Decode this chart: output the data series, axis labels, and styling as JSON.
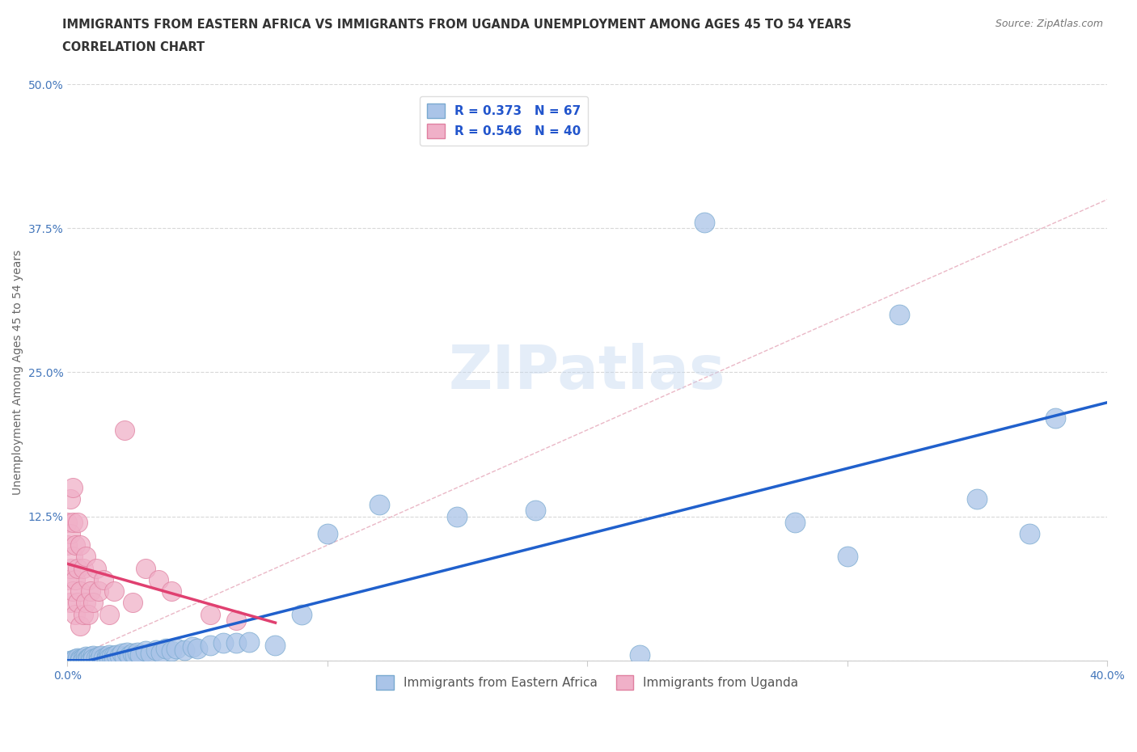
{
  "title_line1": "IMMIGRANTS FROM EASTERN AFRICA VS IMMIGRANTS FROM UGANDA UNEMPLOYMENT AMONG AGES 45 TO 54 YEARS",
  "title_line2": "CORRELATION CHART",
  "source": "Source: ZipAtlas.com",
  "ylabel": "Unemployment Among Ages 45 to 54 years",
  "xlim": [
    0.0,
    0.4
  ],
  "ylim": [
    0.0,
    0.5
  ],
  "xtick_positions": [
    0.0,
    0.1,
    0.2,
    0.3,
    0.4
  ],
  "xticklabels": [
    "0.0%",
    "",
    "",
    "",
    "40.0%"
  ],
  "ytick_positions": [
    0.0,
    0.125,
    0.25,
    0.375,
    0.5
  ],
  "yticklabels": [
    "",
    "12.5%",
    "25.0%",
    "37.5%",
    "50.0%"
  ],
  "series1_label": "Immigrants from Eastern Africa",
  "series1_color": "#aac4e8",
  "series1_edge_color": "#7aaad0",
  "series1_line_color": "#2060cc",
  "series1_R": 0.373,
  "series1_N": 67,
  "series2_label": "Immigrants from Uganda",
  "series2_color": "#f0b0c8",
  "series2_edge_color": "#e080a0",
  "series2_line_color": "#e04070",
  "series2_R": 0.546,
  "series2_N": 40,
  "watermark": "ZIPatlas",
  "background_color": "#ffffff",
  "grid_color": "#d8d8d8",
  "diagonal_line_color": "#e8b0c0",
  "eastern_africa_x": [
    0.001,
    0.002,
    0.003,
    0.004,
    0.004,
    0.005,
    0.005,
    0.006,
    0.006,
    0.007,
    0.007,
    0.008,
    0.008,
    0.009,
    0.009,
    0.01,
    0.01,
    0.011,
    0.012,
    0.012,
    0.013,
    0.014,
    0.015,
    0.015,
    0.016,
    0.016,
    0.017,
    0.018,
    0.018,
    0.019,
    0.02,
    0.021,
    0.022,
    0.023,
    0.024,
    0.025,
    0.026,
    0.027,
    0.028,
    0.03,
    0.032,
    0.034,
    0.036,
    0.038,
    0.04,
    0.042,
    0.045,
    0.048,
    0.05,
    0.055,
    0.06,
    0.065,
    0.07,
    0.08,
    0.09,
    0.1,
    0.12,
    0.15,
    0.18,
    0.22,
    0.245,
    0.28,
    0.3,
    0.32,
    0.35,
    0.37,
    0.38
  ],
  "eastern_africa_y": [
    0.0,
    0.0,
    0.001,
    0.0,
    0.002,
    0.001,
    0.0,
    0.002,
    0.0,
    0.003,
    0.0,
    0.002,
    0.001,
    0.003,
    0.0,
    0.004,
    0.001,
    0.002,
    0.003,
    0.0,
    0.004,
    0.002,
    0.003,
    0.001,
    0.005,
    0.002,
    0.003,
    0.004,
    0.001,
    0.005,
    0.004,
    0.006,
    0.003,
    0.007,
    0.004,
    0.006,
    0.005,
    0.007,
    0.005,
    0.008,
    0.006,
    0.009,
    0.007,
    0.01,
    0.008,
    0.01,
    0.009,
    0.012,
    0.01,
    0.013,
    0.015,
    0.015,
    0.016,
    0.013,
    0.04,
    0.11,
    0.135,
    0.125,
    0.13,
    0.005,
    0.38,
    0.12,
    0.09,
    0.3,
    0.14,
    0.11,
    0.21
  ],
  "uganda_x": [
    0.0,
    0.0,
    0.0,
    0.001,
    0.001,
    0.001,
    0.001,
    0.002,
    0.002,
    0.002,
    0.002,
    0.003,
    0.003,
    0.003,
    0.004,
    0.004,
    0.004,
    0.005,
    0.005,
    0.005,
    0.006,
    0.006,
    0.007,
    0.007,
    0.008,
    0.008,
    0.009,
    0.01,
    0.011,
    0.012,
    0.014,
    0.016,
    0.018,
    0.022,
    0.025,
    0.03,
    0.035,
    0.04,
    0.055,
    0.065
  ],
  "uganda_y": [
    0.07,
    0.1,
    0.12,
    0.05,
    0.08,
    0.11,
    0.14,
    0.06,
    0.09,
    0.12,
    0.15,
    0.04,
    0.07,
    0.1,
    0.05,
    0.08,
    0.12,
    0.03,
    0.06,
    0.1,
    0.04,
    0.08,
    0.05,
    0.09,
    0.04,
    0.07,
    0.06,
    0.05,
    0.08,
    0.06,
    0.07,
    0.04,
    0.06,
    0.2,
    0.05,
    0.08,
    0.07,
    0.06,
    0.04,
    0.035
  ]
}
